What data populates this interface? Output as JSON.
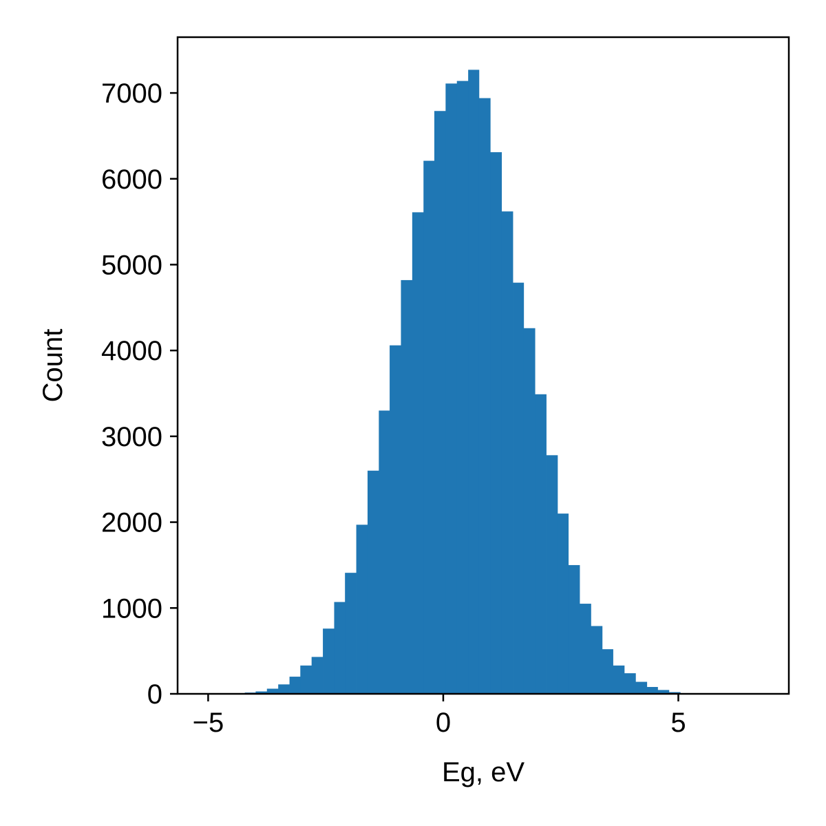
{
  "chart_data": {
    "type": "bar",
    "title": "",
    "xlabel": "Eg, eV",
    "ylabel": "Count",
    "xlim": [
      -5.65,
      7.35
    ],
    "ylim": [
      0,
      7650
    ],
    "xticks": [
      -5,
      0,
      5
    ],
    "xtick_labels": [
      "−5",
      "0",
      "5"
    ],
    "yticks": [
      0,
      1000,
      2000,
      3000,
      4000,
      5000,
      6000,
      7000
    ],
    "ytick_labels": [
      "0",
      "1000",
      "2000",
      "3000",
      "4000",
      "5000",
      "6000",
      "7000"
    ],
    "grid": false,
    "legend": false,
    "bar_color": "#1f77b4",
    "bin_edges": [
      -4.94,
      -4.7,
      -4.46,
      -4.22,
      -3.99,
      -3.75,
      -3.51,
      -3.27,
      -3.04,
      -2.8,
      -2.56,
      -2.32,
      -2.09,
      -1.85,
      -1.61,
      -1.37,
      -1.14,
      -0.9,
      -0.66,
      -0.42,
      -0.19,
      0.05,
      0.29,
      0.53,
      0.76,
      1.0,
      1.24,
      1.48,
      1.71,
      1.95,
      2.19,
      2.43,
      2.66,
      2.9,
      3.14,
      3.38,
      3.61,
      3.85,
      4.09,
      4.33,
      4.56,
      4.8,
      5.04,
      5.28
    ],
    "counts": [
      2,
      4,
      8,
      15,
      28,
      60,
      110,
      200,
      330,
      430,
      760,
      1070,
      1410,
      1970,
      2600,
      3300,
      4060,
      4820,
      5610,
      6210,
      6790,
      7110,
      7140,
      7270,
      6940,
      6310,
      5620,
      4790,
      4260,
      3490,
      2780,
      2100,
      1500,
      1050,
      790,
      520,
      330,
      240,
      140,
      80,
      45,
      20,
      8
    ]
  }
}
